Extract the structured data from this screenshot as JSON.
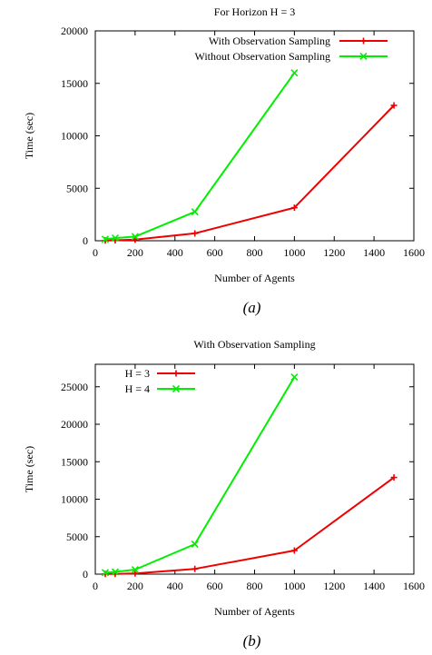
{
  "chart_data": [
    {
      "type": "line",
      "title": "For Horizon H = 3",
      "xlabel": "Number of Agents",
      "ylabel": "Time (sec)",
      "caption": "(a)",
      "xlim": [
        0,
        1600
      ],
      "ylim": [
        0,
        20000
      ],
      "xticks": [
        0,
        200,
        400,
        600,
        800,
        1000,
        1200,
        1400,
        1600
      ],
      "yticks": [
        0,
        5000,
        10000,
        15000,
        20000
      ],
      "grid": false,
      "legend_position": "top-right",
      "series": [
        {
          "name": "With Observation Sampling",
          "color": "#ee0000",
          "marker": "plus",
          "x": [
            50,
            100,
            200,
            500,
            1000,
            1500
          ],
          "y": [
            20,
            40,
            100,
            700,
            3150,
            12900
          ]
        },
        {
          "name": "Without Observation Sampling",
          "color": "#00ee00",
          "marker": "cross",
          "x": [
            50,
            100,
            200,
            500,
            1000
          ],
          "y": [
            150,
            250,
            400,
            2750,
            16000
          ]
        }
      ]
    },
    {
      "type": "line",
      "title": "With Observation Sampling",
      "xlabel": "Number of Agents",
      "ylabel": "Time (sec)",
      "caption": "(b)",
      "xlim": [
        0,
        1600
      ],
      "ylim": [
        0,
        28000
      ],
      "xticks": [
        0,
        200,
        400,
        600,
        800,
        1000,
        1200,
        1400,
        1600
      ],
      "yticks": [
        0,
        5000,
        10000,
        15000,
        20000,
        25000
      ],
      "grid": false,
      "legend_position": "top-left",
      "series": [
        {
          "name": "H = 3",
          "color": "#ee0000",
          "marker": "plus",
          "x": [
            50,
            100,
            200,
            500,
            1000,
            1500
          ],
          "y": [
            20,
            40,
            100,
            700,
            3150,
            12900
          ]
        },
        {
          "name": "H = 4",
          "color": "#00ee00",
          "marker": "cross",
          "x": [
            50,
            100,
            200,
            500,
            1000
          ],
          "y": [
            200,
            300,
            600,
            4000,
            26300
          ]
        }
      ]
    }
  ]
}
